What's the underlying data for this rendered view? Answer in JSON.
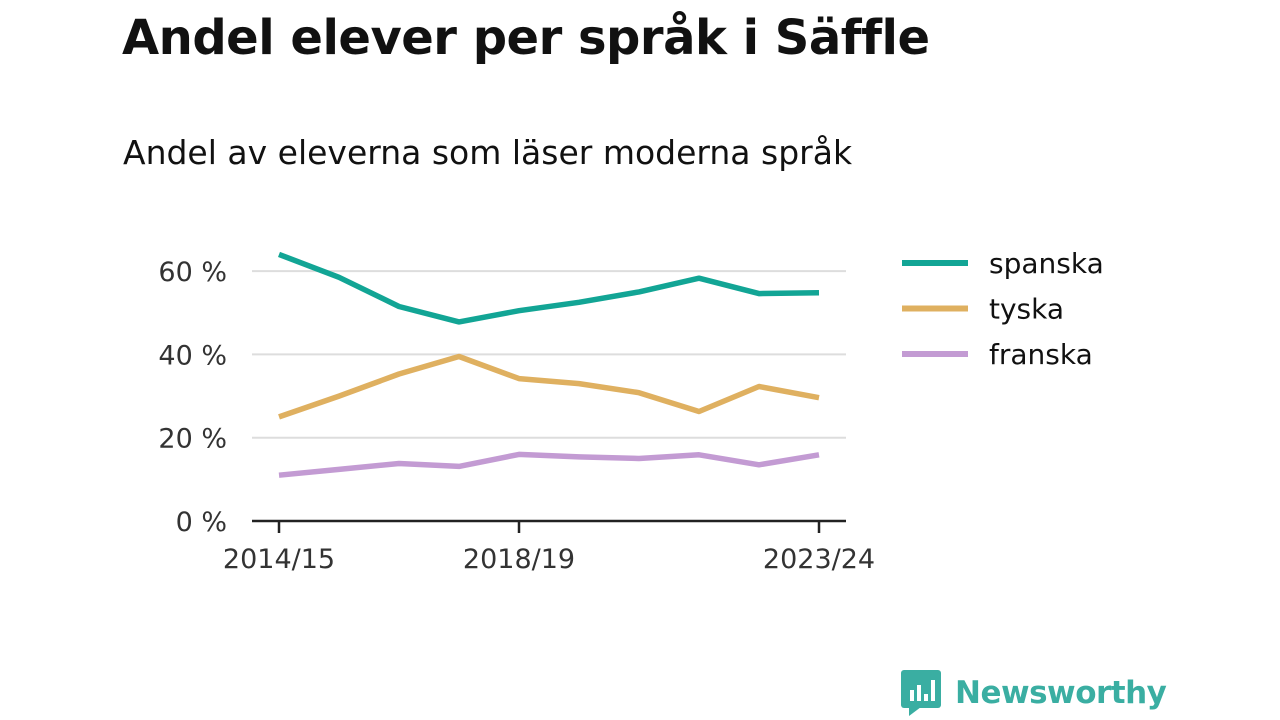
{
  "title": "Andel elever per språk i Säffle",
  "subtitle": "Andel av eleverna som läser moderna språk",
  "brand": {
    "name": "Newsworthy",
    "icon": "newsworthy-logo-icon",
    "color": "#3aaea2"
  },
  "chart_data": {
    "type": "line",
    "x": [
      "2014/15",
      "2015/16",
      "2016/17",
      "2017/18",
      "2018/19",
      "2019/20",
      "2020/21",
      "2021/22",
      "2022/23",
      "2023/24"
    ],
    "x_tick_labels": [
      "2014/15",
      "2018/19",
      "2023/24"
    ],
    "y_ticks": [
      {
        "value": 0,
        "label": "0 %"
      },
      {
        "value": 20,
        "label": "20 %"
      },
      {
        "value": 40,
        "label": "40 %"
      },
      {
        "value": 60,
        "label": "60 %"
      }
    ],
    "ylim": [
      0,
      65
    ],
    "grid": true,
    "legend": "right",
    "series": [
      {
        "name": "spanska",
        "color": "#12a595",
        "values": [
          64,
          58.5,
          51.5,
          47.8,
          50.5,
          52.5,
          55,
          58.3,
          54.6,
          54.8
        ]
      },
      {
        "name": "tyska",
        "color": "#dfb060",
        "values": [
          25,
          30,
          35.3,
          39.5,
          34.2,
          33,
          30.8,
          26.3,
          32.3,
          29.6
        ]
      },
      {
        "name": "franska",
        "color": "#c39bd3",
        "values": [
          11,
          12.4,
          13.8,
          13.1,
          16,
          15.4,
          15,
          15.9,
          13.5,
          15.9
        ]
      }
    ]
  }
}
